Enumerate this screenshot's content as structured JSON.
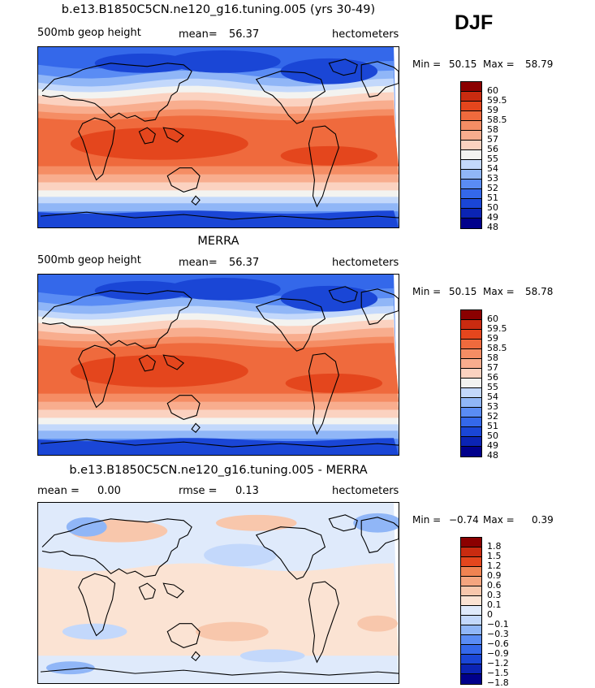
{
  "season": "DJF",
  "colors": {
    "abs": [
      "#00008b",
      "#0b24b4",
      "#1a46d6",
      "#3468ea",
      "#5a8cf4",
      "#90b6f7",
      "#c3d8fb",
      "#f3f3f0",
      "#fbd2c0",
      "#f8ad8e",
      "#f58d64",
      "#ef6a3d",
      "#e4461d",
      "#c92b10",
      "#8b0000"
    ],
    "diff": [
      "#00008b",
      "#0b24b4",
      "#1a46d6",
      "#3468ea",
      "#5a8cf4",
      "#90b6f7",
      "#c3d8fb",
      "#dfeafb",
      "#fbe3d3",
      "#f8c7ac",
      "#f5a57f",
      "#f08352",
      "#e4461d",
      "#c92b10",
      "#8b0000"
    ]
  },
  "panels": [
    {
      "title": "b.e13.B1850C5CN.ne120_g16.tuning.005 (yrs 30-49)",
      "left_label": "500mb geop height",
      "stat1_label": "mean=",
      "stat1_value": "56.37",
      "stat2_label": "",
      "stat2_value": "",
      "units": "hectometers",
      "min_label": "Min =",
      "min_value": "50.15",
      "max_label": "Max =",
      "max_value": "58.79",
      "levels": [
        "60",
        "59.5",
        "59",
        "58.5",
        "58",
        "57",
        "56",
        "55",
        "54",
        "53",
        "52",
        "51",
        "50",
        "49",
        "48"
      ],
      "map_kind": "abs"
    },
    {
      "title": "MERRA",
      "left_label": "500mb geop height",
      "stat1_label": "mean=",
      "stat1_value": "56.37",
      "stat2_label": "",
      "stat2_value": "",
      "units": "hectometers",
      "min_label": "Min =",
      "min_value": "50.15",
      "max_label": "Max =",
      "max_value": "58.78",
      "levels": [
        "60",
        "59.5",
        "59",
        "58.5",
        "58",
        "57",
        "56",
        "55",
        "54",
        "53",
        "52",
        "51",
        "50",
        "49",
        "48"
      ],
      "map_kind": "abs"
    },
    {
      "title": "b.e13.B1850C5CN.ne120_g16.tuning.005 - MERRA",
      "left_label": "",
      "stat1_label": "mean =",
      "stat1_value": "0.00",
      "stat2_label": "rmse =",
      "stat2_value": "0.13",
      "units": "hectometers",
      "min_label": "Min =",
      "min_value": "−0.74",
      "max_label": "Max =",
      "max_value": "0.39",
      "levels": [
        "1.8",
        "1.5",
        "1.2",
        "0.9",
        "0.6",
        "0.3",
        "0.1",
        "0",
        "−0.1",
        "−0.3",
        "−0.6",
        "−0.9",
        "−1.2",
        "−1.5",
        "−1.8"
      ],
      "map_kind": "diff"
    }
  ]
}
